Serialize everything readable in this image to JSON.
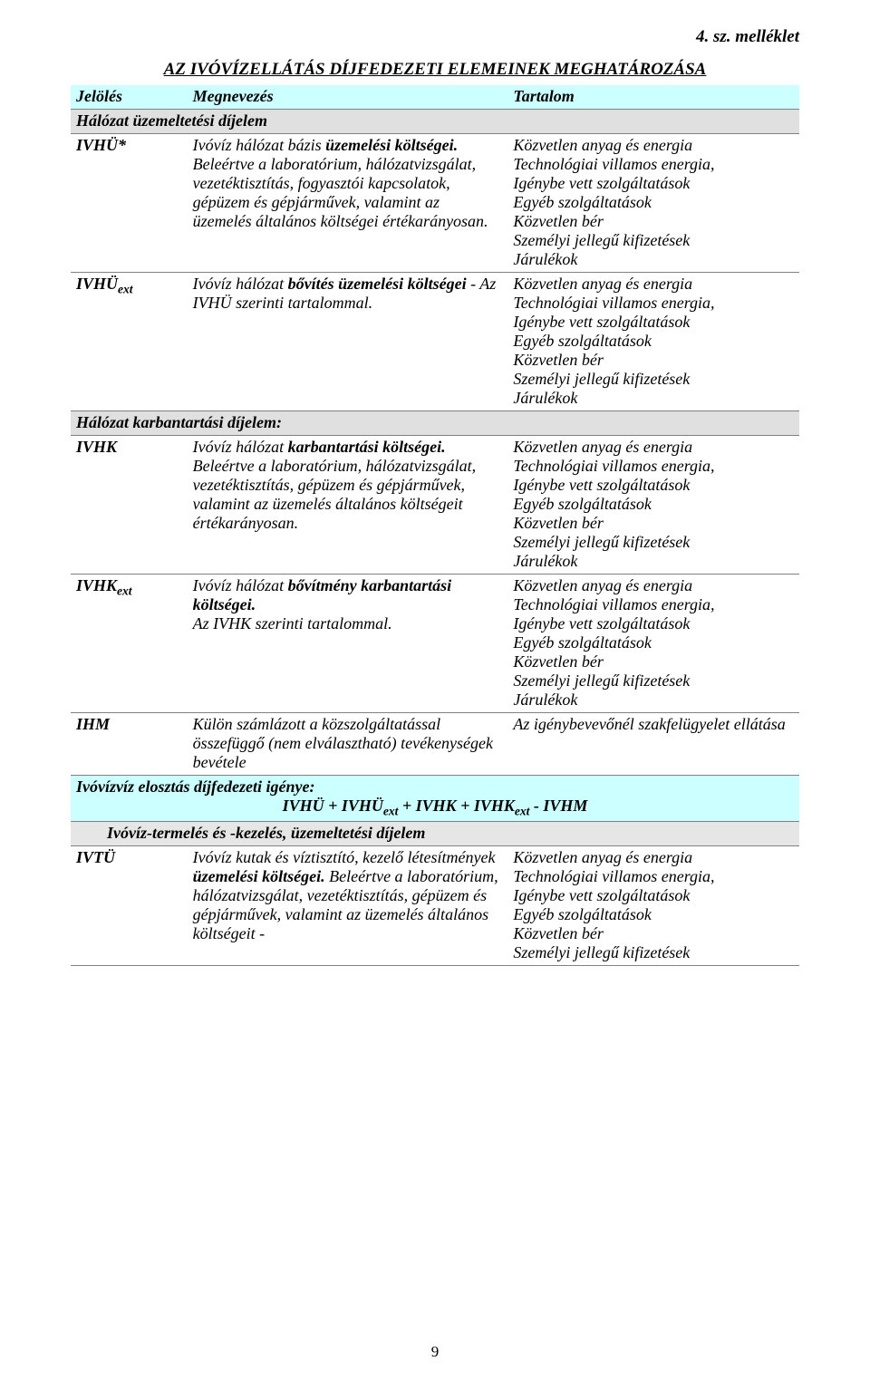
{
  "attachment_label": "4. sz. melléklet",
  "title": "AZ IVÓVÍZELLÁTÁS DÍJFEDEZETI ELEMEINEK MEGHATÁROZÁSA",
  "head": {
    "c1": "Jelölés",
    "c2": "Megnevezés",
    "c3": "Tartalom"
  },
  "section1": "Hálózat üzemeltetési díjelem",
  "row1": {
    "c1": "IVHÜ*",
    "c2_a": "Ivóvíz hálózat",
    "c2_b": " bázis ",
    "c2_c": "üzemelési költségei.",
    "c2_d": " Beleértve a laboratórium, hálózatvizsgálat, vezetéktisztítás, fogyasztói kapcsolatok, gépüzem és gépjárművek, valamint az üzemelés általános költségei értékarányosan.",
    "c3": "Közvetlen anyag és energia\nTechnológiai villamos energia,\nIgénybe vett szolgáltatások\nEgyéb szolgáltatások\nKözvetlen bér\nSzemélyi jellegű kifizetések\nJárulékok"
  },
  "row2": {
    "c1_a": "IVHÜ",
    "c1_b": "ext",
    "c2_a": "Ivóvíz hálózat",
    "c2_b": " bővítés üzemelési költségei",
    "c2_c": " - Az IVHÜ szerinti tartalommal.",
    "c3": "Közvetlen anyag és energia\nTechnológiai villamos energia,\nIgénybe vett szolgáltatások\nEgyéb szolgáltatások\nKözvetlen bér\nSzemélyi jellegű kifizetések\nJárulékok"
  },
  "section2": "Hálózat karbantartási díjelem:",
  "row3": {
    "c1": "IVHK",
    "c2_a": "Ivóvíz hálózat ",
    "c2_b": "karbantartási költségei.",
    "c2_c": " Beleértve a laboratórium, hálózatvizsgálat, vezetéktisztítás, gépüzem és gépjárművek, valamint az üzemelés általános költségeit értékarányosan.",
    "c3": "Közvetlen anyag és energia\nTechnológiai villamos energia,\nIgénybe vett szolgáltatások\nEgyéb szolgáltatások\nKözvetlen bér\nSzemélyi jellegű kifizetések\nJárulékok"
  },
  "row4": {
    "c1_a": "IVHK",
    "c1_b": "ext",
    "c2_a": "Ivóvíz hálózat ",
    "c2_b": "bővítmény karbantartási költségei.",
    "c2_c": "\nAz IVHK szerinti tartalommal.",
    "c3": "Közvetlen anyag és energia\nTechnológiai villamos energia,\nIgénybe vett szolgáltatások\nEgyéb szolgáltatások\nKözvetlen bér\nSzemélyi jellegű kifizetések\nJárulékok"
  },
  "row5": {
    "c1": "IHM",
    "c2": "Külön számlázott a közszolgáltatással összefüggő (nem elválasztható) tevékenységek bevétele",
    "c3": "Az igénybevevőnél szakfelügyelet ellátása"
  },
  "formula_top": "Ivóvízvíz elosztás díjfedezeti igénye:",
  "formula_a": "IVHÜ + IVHÜ",
  "formula_b": "ext",
  "formula_c": " + IVHK + IVHK",
  "formula_d": "ext",
  "formula_e": " - IVHM",
  "subhead": "Ivóvíz-termelés és -kezelés, üzemeltetési díjelem",
  "row6": {
    "c1": "IVTÜ",
    "c2_a": "Ivóvíz kutak és víztisztító, kezelő létesítmények ",
    "c2_b": "üzemelési költségei.",
    "c2_c": " Beleértve a laboratórium, hálózatvizsgálat, vezetéktisztítás, gépüzem és gépjárművek, valamint az üzemelés általános költségeit -",
    "c3": "Közvetlen anyag és energia\nTechnológiai villamos energia,\nIgénybe vett szolgáltatások\nEgyéb szolgáltatások\nKözvetlen bér\nSzemélyi jellegű kifizetések"
  },
  "page_number": "9"
}
